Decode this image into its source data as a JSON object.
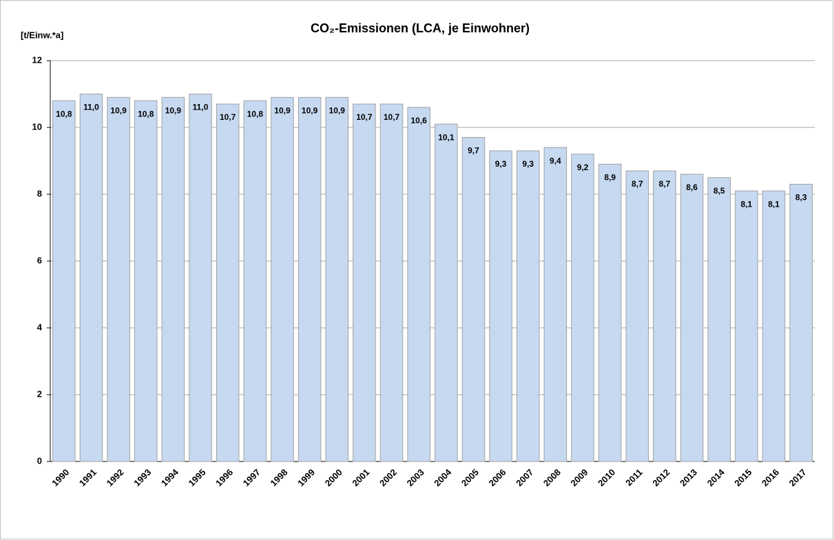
{
  "chart_data": {
    "type": "bar",
    "title": "CO₂-Emissionen (LCA, je Einwohner)",
    "y_label": "[t/Einw.*a]",
    "categories": [
      "1990",
      "1991",
      "1992",
      "1993",
      "1994",
      "1995",
      "1996",
      "1997",
      "1998",
      "1999",
      "2000",
      "2001",
      "2002",
      "2003",
      "2004",
      "2005",
      "2006",
      "2007",
      "2008",
      "2009",
      "2010",
      "2011",
      "2012",
      "2013",
      "2014",
      "2015",
      "2016",
      "2017"
    ],
    "values": [
      10.8,
      11.0,
      10.9,
      10.8,
      10.9,
      11.0,
      10.7,
      10.8,
      10.9,
      10.9,
      10.9,
      10.7,
      10.7,
      10.6,
      10.1,
      9.7,
      9.3,
      9.3,
      9.4,
      9.2,
      8.9,
      8.7,
      8.7,
      8.6,
      8.5,
      8.1,
      8.1,
      8.3
    ],
    "value_labels": [
      "10,8",
      "11,0",
      "10,9",
      "10,8",
      "10,9",
      "11,0",
      "10,7",
      "10,8",
      "10,9",
      "10,9",
      "10,9",
      "10,7",
      "10,7",
      "10,6",
      "10,1",
      "9,7",
      "9,3",
      "9,3",
      "9,4",
      "9,2",
      "8,9",
      "8,7",
      "8,7",
      "8,6",
      "8,5",
      "8,1",
      "8,1",
      "8,3"
    ],
    "color": "#c6d9f1",
    "ylim": [
      0,
      12
    ],
    "yticks": [
      0,
      2,
      4,
      6,
      8,
      10,
      12
    ],
    "grid": true
  }
}
